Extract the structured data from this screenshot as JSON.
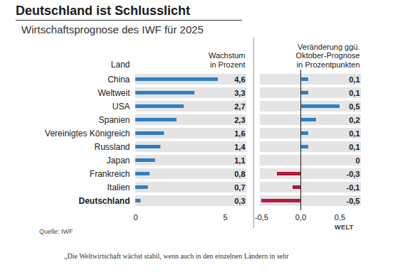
{
  "title": "Deutschland ist Schlusslicht",
  "subtitle": "Wirtschaftsprognose des IWF für 2025",
  "source": "Quelle: IWF",
  "logo": "WELT",
  "caption": "„Die Weltwirtschaft wächst stabil, wenn auch in den einzelnen Ländern in sehr",
  "chart_data": [
    {
      "type": "bar",
      "orientation": "horizontal",
      "title": "Wachstum\nin Prozent",
      "ylabel": "Land",
      "categories": [
        "China",
        "Weltweit",
        "USA",
        "Spanien",
        "Vereinigtes Königreich",
        "Russland",
        "Japan",
        "Frankreich",
        "Italien",
        "Deutschland"
      ],
      "values": [
        4.6,
        3.3,
        2.7,
        2.3,
        1.6,
        1.4,
        1.1,
        0.8,
        0.7,
        0.3
      ],
      "value_labels": [
        "4,6",
        "3,3",
        "2,7",
        "2,3",
        "1,6",
        "1,4",
        "1,1",
        "0,8",
        "0,7",
        "0,3"
      ],
      "color": "#2f7fc1",
      "xlim": [
        0,
        5
      ],
      "xticks": [
        0,
        5
      ],
      "data_labels": true,
      "grid": false
    },
    {
      "type": "bar",
      "orientation": "horizontal",
      "title": "Veränderung ggü.\nOktober-Prognose\nin Prozentpunkten",
      "categories": [
        "China",
        "Weltweit",
        "USA",
        "Spanien",
        "Vereinigtes Königreich",
        "Russland",
        "Japan",
        "Frankreich",
        "Italien",
        "Deutschland"
      ],
      "values": [
        0.1,
        0.1,
        0.5,
        0.2,
        0.1,
        0.1,
        0,
        -0.3,
        -0.1,
        -0.5
      ],
      "value_labels": [
        "0,1",
        "0,1",
        "0,5",
        "0,2",
        "0,1",
        "0,1",
        "0",
        "-0,3",
        "-0,1",
        "-0,5"
      ],
      "colors": [
        "#2f7fc1",
        "#2f7fc1",
        "#2f7fc1",
        "#2f7fc1",
        "#2f7fc1",
        "#2f7fc1",
        "#2f7fc1",
        "#b5173d",
        "#b5173d",
        "#b5173d"
      ],
      "xlim": [
        -0.5,
        0.5
      ],
      "xticks": [
        {
          "value": -0.5,
          "label": "-0,5"
        },
        {
          "value": 0,
          "label": "0,0"
        },
        {
          "value": 0.5,
          "label": "0,5"
        }
      ],
      "data_labels": true,
      "grid": false
    }
  ]
}
